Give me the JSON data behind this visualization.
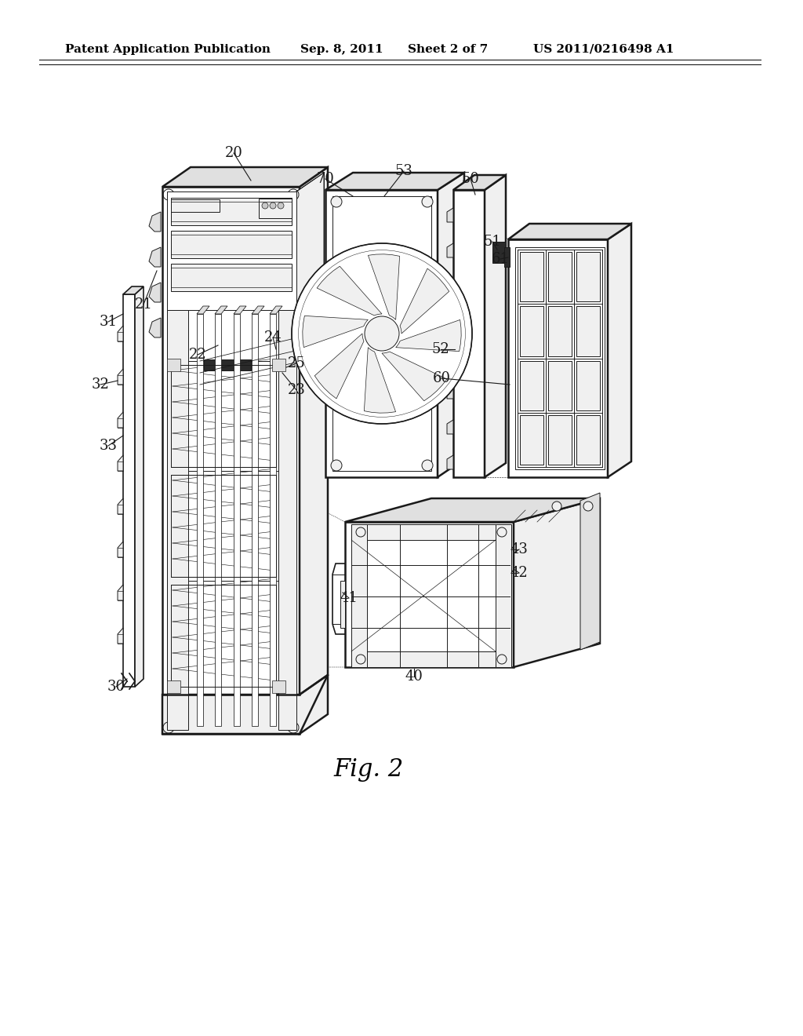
{
  "background_color": "#ffffff",
  "header_text": "Patent Application Publication",
  "header_date": "Sep. 8, 2011",
  "header_sheet": "Sheet 2 of 7",
  "header_patent": "US 2011/0216498 A1",
  "figure_label": "Fig. 2",
  "title_fontsize": 11,
  "label_fontsize": 13,
  "fig_label_fontsize": 22,
  "line_color": "#1a1a1a",
  "lw_main": 1.2,
  "lw_thin": 0.7,
  "lw_thick": 1.8
}
